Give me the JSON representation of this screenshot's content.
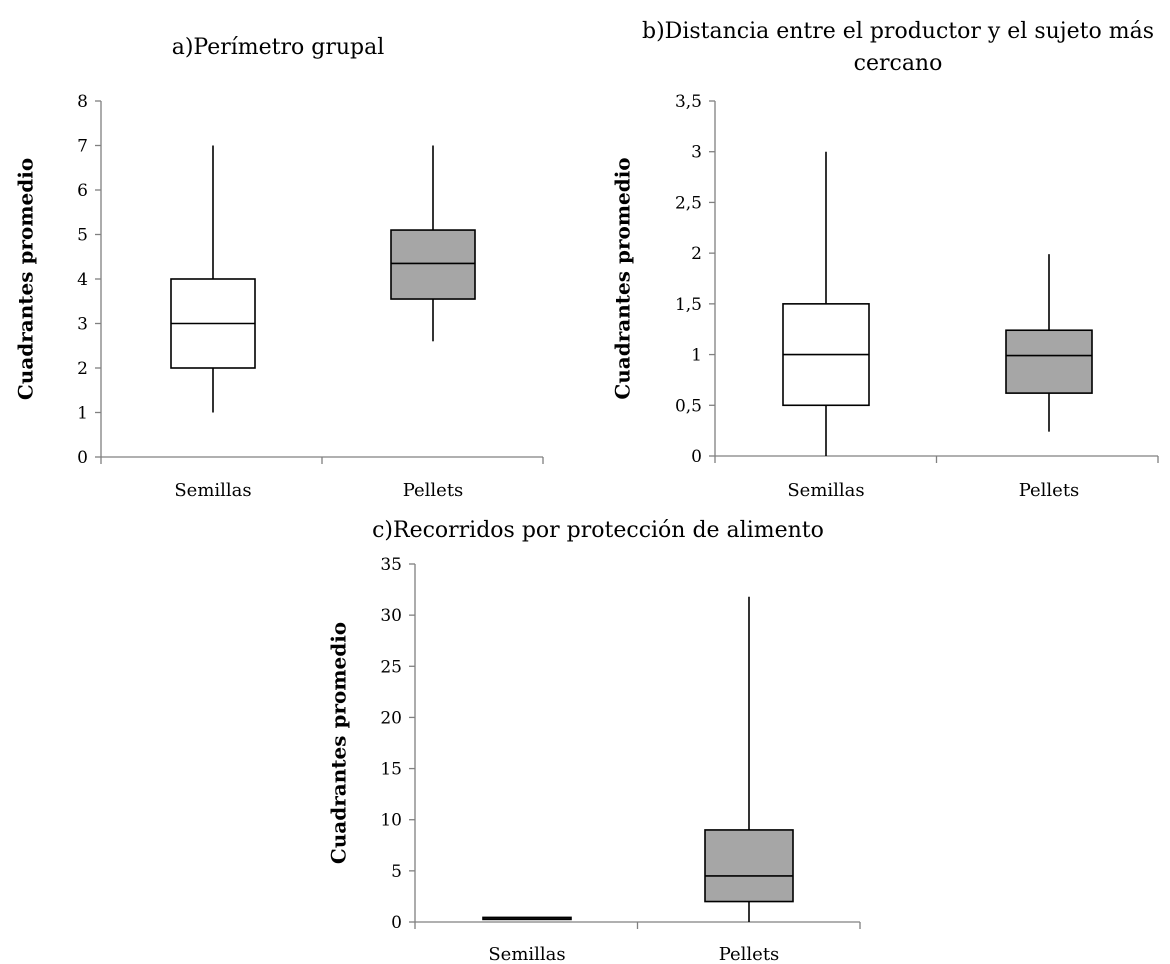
{
  "chart_data": [
    {
      "type": "box",
      "title_lines": [
        "a)Perímetro grupal"
      ],
      "ylabel": "Cuadrantes promedio",
      "xlabel": "",
      "ylim": [
        0,
        8
      ],
      "y_ticks": [
        "0",
        "1",
        "2",
        "3",
        "4",
        "5",
        "6",
        "7",
        "8"
      ],
      "y_tick_values": [
        0,
        1,
        2,
        3,
        4,
        5,
        6,
        7,
        8
      ],
      "categories": [
        "Semillas",
        "Pellets"
      ],
      "boxes": [
        {
          "category": "Semillas",
          "min": 1,
          "q1": 2,
          "median": 3,
          "q3": 4,
          "max": 7,
          "fill": "#ffffff"
        },
        {
          "category": "Pellets",
          "min": 2.6,
          "q1": 3.55,
          "median": 4.35,
          "q3": 5.1,
          "max": 7,
          "fill": "#a6a6a6"
        }
      ]
    },
    {
      "type": "box",
      "title_lines": [
        "b)Distancia entre el productor y el sujeto más",
        "cercano"
      ],
      "ylabel": "Cuadrantes promedio",
      "xlabel": "",
      "ylim": [
        0,
        3.5
      ],
      "y_ticks": [
        "0",
        "0,5",
        "1",
        "1,5",
        "2",
        "2,5",
        "3",
        "3,5"
      ],
      "y_tick_values": [
        0,
        0.5,
        1,
        1.5,
        2,
        2.5,
        3,
        3.5
      ],
      "categories": [
        "Semillas",
        "Pellets"
      ],
      "boxes": [
        {
          "category": "Semillas",
          "min": 0,
          "q1": 0.5,
          "median": 1,
          "q3": 1.5,
          "max": 3,
          "fill": "#ffffff"
        },
        {
          "category": "Pellets",
          "min": 0.24,
          "q1": 0.62,
          "median": 0.99,
          "q3": 1.24,
          "max": 1.99,
          "fill": "#a6a6a6"
        }
      ]
    },
    {
      "type": "box",
      "title_lines": [
        "c)Recorridos por protección de alimento"
      ],
      "ylabel": "Cuadrantes promedio",
      "xlabel": "",
      "ylim": [
        0,
        35
      ],
      "y_ticks": [
        "0",
        "5",
        "10",
        "15",
        "20",
        "25",
        "30",
        "35"
      ],
      "y_tick_values": [
        0,
        5,
        10,
        15,
        20,
        25,
        30,
        35
      ],
      "categories": [
        "Semillas",
        "Pellets"
      ],
      "boxes": [
        {
          "category": "Semillas",
          "min": 0.35,
          "q1": 0.35,
          "median": 0.4,
          "q3": 0.45,
          "max": 0.45,
          "fill": "#ffffff"
        },
        {
          "category": "Pellets",
          "min": 0,
          "q1": 2,
          "median": 4.5,
          "q3": 9,
          "max": 31.8,
          "fill": "#a6a6a6"
        }
      ]
    }
  ]
}
